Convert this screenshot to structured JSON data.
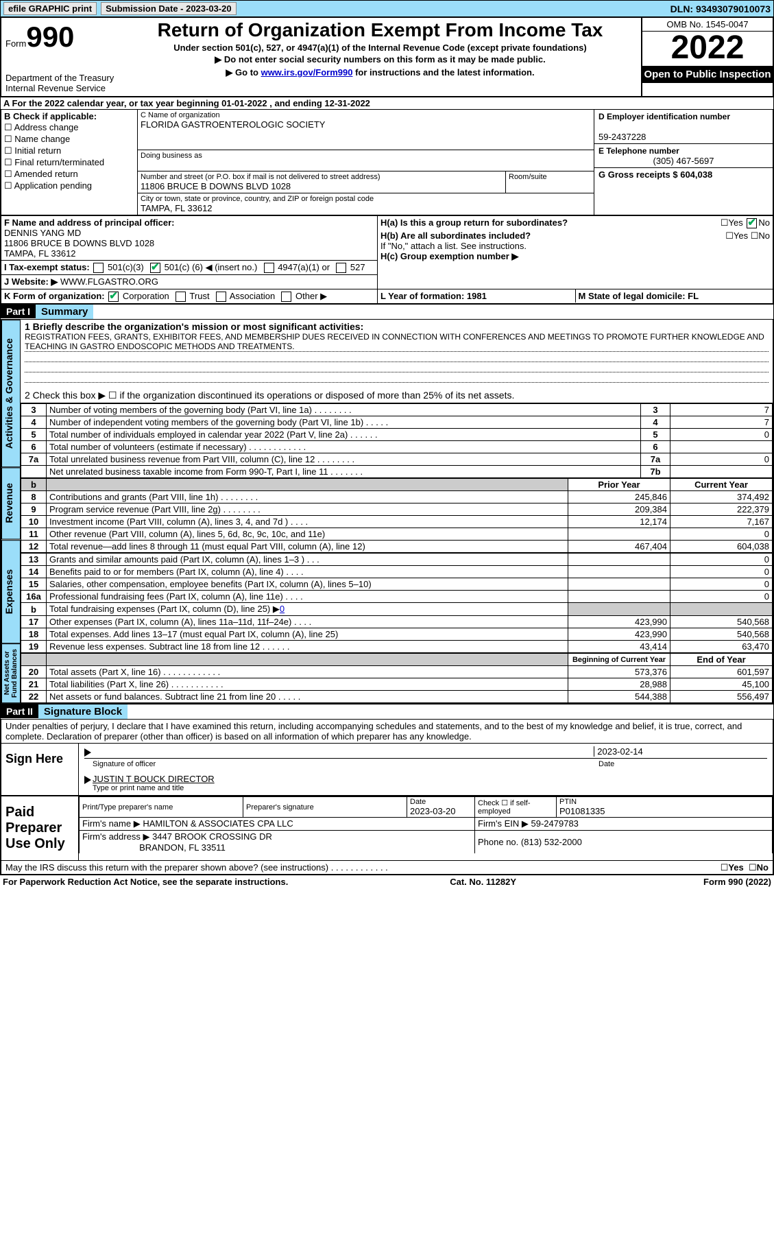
{
  "top": {
    "efile": "efile GRAPHIC print",
    "sub_label": "Submission Date - 2023-03-20",
    "dln": "DLN: 93493079010073"
  },
  "hdr": {
    "form": "Form",
    "num": "990",
    "title": "Return of Organization Exempt From Income Tax",
    "sub1": "Under section 501(c), 527, or 4947(a)(1) of the Internal Revenue Code (except private foundations)",
    "sub2": "▶ Do not enter social security numbers on this form as it may be made public.",
    "sub3_a": "▶ Go to ",
    "sub3_link": "www.irs.gov/Form990",
    "sub3_b": " for instructions and the latest information.",
    "dept": "Department of the Treasury",
    "irs": "Internal Revenue Service",
    "omb": "OMB No. 1545-0047",
    "year": "2022",
    "open": "Open to Public Inspection"
  },
  "a": "A For the 2022 calendar year, or tax year beginning 01-01-2022    , and ending 12-31-2022",
  "b": {
    "hdr": "B Check if applicable:",
    "items": [
      "Address change",
      "Name change",
      "Initial return",
      "Final return/terminated",
      "Amended return",
      "Application pending"
    ]
  },
  "c": {
    "name_lbl": "C Name of organization",
    "name": "FLORIDA GASTROENTEROLOGIC SOCIETY",
    "dba_lbl": "Doing business as",
    "street_lbl": "Number and street (or P.O. box if mail is not delivered to street address)",
    "street": "11806 BRUCE B DOWNS BLVD 1028",
    "room_lbl": "Room/suite",
    "city_lbl": "City or town, state or province, country, and ZIP or foreign postal code",
    "city": "TAMPA, FL  33612"
  },
  "d": {
    "ein_lbl": "D Employer identification number",
    "ein": "59-2437228",
    "tel_lbl": "E Telephone number",
    "tel": "(305) 467-5697",
    "gross_lbl": "G Gross receipts $ 604,038"
  },
  "f": {
    "lbl": "F Name and address of principal officer:",
    "name": "DENNIS YANG MD",
    "addr1": "11806 BRUCE B DOWNS BLVD 1028",
    "addr2": "TAMPA, FL  33612"
  },
  "h": {
    "a": "H(a)  Is this a group return for subordinates?",
    "b": "H(b)  Are all subordinates included?",
    "b2": "If \"No,\" attach a list. See instructions.",
    "c": "H(c)  Group exemption number ▶",
    "yes": "Yes",
    "no": "No"
  },
  "i": {
    "lbl": "I    Tax-exempt status:",
    "o1": "501(c)(3)",
    "o2a": "501(c) (",
    "o2num": "6",
    "o2b": ") ◀ (insert no.)",
    "o3": "4947(a)(1) or",
    "o4": "527"
  },
  "j": {
    "lbl": "J    Website: ▶",
    "val": "  WWW.FLGASTRO.ORG"
  },
  "k": {
    "lbl": "K Form of organization:",
    "o1": "Corporation",
    "o2": "Trust",
    "o3": "Association",
    "o4": "Other ▶"
  },
  "l": {
    "lbl": "L Year of formation: 1981"
  },
  "m": {
    "lbl": "M State of legal domicile: FL"
  },
  "parts": {
    "p1": "Part I",
    "p1t": "Summary",
    "p2": "Part II",
    "p2t": "Signature Block"
  },
  "summary": {
    "l1_lbl": "1  Briefly describe the organization's mission or most significant activities:",
    "l1": "REGISTRATION FEES, GRANTS, EXHIBITOR FEES, AND MEMBERSHIP DUES RECEIVED IN CONNECTION WITH CONFERENCES AND MEETINGS TO PROMOTE FURTHER KNOWLEDGE AND TEACHING IN GASTRO ENDOSCOPIC METHODS AND TREATMENTS.",
    "l2": "2   Check this box ▶ ☐ if the organization discontinued its operations or disposed of more than 25% of its net assets.",
    "rows_ag": [
      {
        "n": "3",
        "t": "Number of voting members of the governing body (Part VI, line 1a)   .    .    .    .    .    .    .    .",
        "b": "3",
        "v": "7"
      },
      {
        "n": "4",
        "t": "Number of independent voting members of the governing body (Part VI, line 1b)  .    .    .    .    .",
        "b": "4",
        "v": "7"
      },
      {
        "n": "5",
        "t": "Total number of individuals employed in calendar year 2022 (Part V, line 2a)  .    .    .    .    .    .",
        "b": "5",
        "v": "0"
      },
      {
        "n": "6",
        "t": "Total number of volunteers (estimate if necessary)    .    .    .    .    .    .    .    .    .    .    .    .",
        "b": "6",
        "v": ""
      },
      {
        "n": "7a",
        "t": "Total unrelated business revenue from Part VIII, column (C), line 12   .    .    .    .    .    .    .    .",
        "b": "7a",
        "v": "0"
      },
      {
        "n": "",
        "t": "Net unrelated business taxable income from Form 990-T, Part I, line 11  .    .    .    .    .    .    .",
        "b": "7b",
        "v": ""
      }
    ],
    "col_py": "Prior Year",
    "col_cy": "Current Year",
    "rev": [
      {
        "n": "8",
        "t": "Contributions and grants (Part VIII, line 1h)   .    .    .    .    .    .    .    .",
        "p": "245,846",
        "c": "374,492"
      },
      {
        "n": "9",
        "t": "Program service revenue (Part VIII, line 2g)   .    .    .    .    .    .    .    .",
        "p": "209,384",
        "c": "222,379"
      },
      {
        "n": "10",
        "t": "Investment income (Part VIII, column (A), lines 3, 4, and 7d )   .    .    .    .",
        "p": "12,174",
        "c": "7,167"
      },
      {
        "n": "11",
        "t": "Other revenue (Part VIII, column (A), lines 5, 6d, 8c, 9c, 10c, and 11e)",
        "p": "",
        "c": "0"
      },
      {
        "n": "12",
        "t": "Total revenue—add lines 8 through 11 (must equal Part VIII, column (A), line 12)",
        "p": "467,404",
        "c": "604,038"
      }
    ],
    "exp": [
      {
        "n": "13",
        "t": "Grants and similar amounts paid (Part IX, column (A), lines 1–3 )  .    .    .",
        "p": "",
        "c": "0"
      },
      {
        "n": "14",
        "t": "Benefits paid to or for members (Part IX, column (A), line 4)  .    .    .    .",
        "p": "",
        "c": "0"
      },
      {
        "n": "15",
        "t": "Salaries, other compensation, employee benefits (Part IX, column (A), lines 5–10)",
        "p": "",
        "c": "0"
      },
      {
        "n": "16a",
        "t": "Professional fundraising fees (Part IX, column (A), line 11e)  .    .    .    .",
        "p": "",
        "c": "0"
      },
      {
        "n": "b",
        "t": "Total fundraising expenses (Part IX, column (D), line 25) ▶",
        "fv": "0",
        "gray": true
      },
      {
        "n": "17",
        "t": "Other expenses (Part IX, column (A), lines 11a–11d, 11f–24e)   .    .    .    .",
        "p": "423,990",
        "c": "540,568"
      },
      {
        "n": "18",
        "t": "Total expenses. Add lines 13–17 (must equal Part IX, column (A), line 25)",
        "p": "423,990",
        "c": "540,568"
      },
      {
        "n": "19",
        "t": "Revenue less expenses. Subtract line 18 from line 12  .    .    .    .    .    .",
        "p": "43,414",
        "c": "63,470"
      }
    ],
    "col_boy": "Beginning of Current Year",
    "col_eoy": "End of Year",
    "net": [
      {
        "n": "20",
        "t": "Total assets (Part X, line 16)  .    .    .    .    .    .    .    .    .    .    .    .",
        "p": "573,376",
        "c": "601,597"
      },
      {
        "n": "21",
        "t": "Total liabilities (Part X, line 26)   .    .    .    .    .    .    .    .    .    .    .",
        "p": "28,988",
        "c": "45,100"
      },
      {
        "n": "22",
        "t": "Net assets or fund balances. Subtract line 21 from line 20   .    .    .    .    .",
        "p": "544,388",
        "c": "556,497"
      }
    ],
    "tabs": {
      "ag": "Activities & Governance",
      "rev": "Revenue",
      "exp": "Expenses",
      "net": "Net Assets or Fund Balances"
    }
  },
  "sig": {
    "decl": "Under penalties of perjury, I declare that I have examined this return, including accompanying schedules and statements, and to the best of my knowledge and belief, it is true, correct, and complete. Declaration of preparer (other than officer) is based on all information of which preparer has any knowledge.",
    "sign_here": "Sign Here",
    "sig_of": "Signature of officer",
    "date": "Date",
    "date_v": "2023-02-14",
    "name": "JUSTIN T BOUCK  DIRECTOR",
    "name_lbl": "Type or print name and title",
    "paid": "Paid Preparer Use Only",
    "p_name_l": "Print/Type preparer's name",
    "p_sig_l": "Preparer's signature",
    "p_date_l": "Date",
    "p_date": "2023-03-20",
    "p_chk": "Check ☐ if self-employed",
    "ptin_l": "PTIN",
    "ptin": "P01081335",
    "firm_l": "Firm's name    ▶",
    "firm": "HAMILTON & ASSOCIATES CPA LLC",
    "firm_ein_l": "Firm's EIN ▶",
    "firm_ein": "59-2479783",
    "firm_addr_l": "Firm's address ▶",
    "firm_addr1": "3447 BROOK CROSSING DR",
    "firm_addr2": "BRANDON, FL  33511",
    "phone_l": "Phone no.",
    "phone": "(813) 532-2000",
    "may": "May the IRS discuss this return with the preparer shown above? (see instructions)   .    .    .    .    .    .    .    .    .    .    .    ."
  },
  "foot": {
    "l": "For Paperwork Reduction Act Notice, see the separate instructions.",
    "m": "Cat. No. 11282Y",
    "r": "Form 990 (2022)"
  }
}
